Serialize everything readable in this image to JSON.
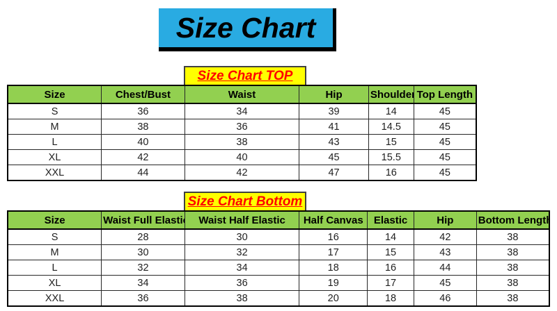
{
  "title": "Size Chart",
  "colors": {
    "title_bg": "#29ABE2",
    "title_text": "#000000",
    "label_bg": "#FFFF00",
    "label_text": "#FF0000",
    "header_bg": "#92D050",
    "border": "#000000"
  },
  "chart_data": [
    {
      "type": "table",
      "title": "Size Chart TOP",
      "columns": [
        "Size",
        "Chest/Bust",
        "Waist",
        "Hip",
        "Shoulder",
        "Top Length"
      ],
      "rows": [
        [
          "S",
          "36",
          "34",
          "39",
          "14",
          "45"
        ],
        [
          "M",
          "38",
          "36",
          "41",
          "14.5",
          "45"
        ],
        [
          "L",
          "40",
          "38",
          "43",
          "15",
          "45"
        ],
        [
          "XL",
          "42",
          "40",
          "45",
          "15.5",
          "45"
        ],
        [
          "XXL",
          "44",
          "42",
          "47",
          "16",
          "45"
        ]
      ]
    },
    {
      "type": "table",
      "title": "Size Chart Bottom",
      "columns": [
        "Size",
        "Waist Full Elastic",
        "Waist Half Elastic",
        "Half Canvas",
        "Elastic",
        "Hip",
        "Bottom Length"
      ],
      "rows": [
        [
          "S",
          "28",
          "30",
          "16",
          "14",
          "42",
          "38"
        ],
        [
          "M",
          "30",
          "32",
          "17",
          "15",
          "43",
          "38"
        ],
        [
          "L",
          "32",
          "34",
          "18",
          "16",
          "44",
          "38"
        ],
        [
          "XL",
          "34",
          "36",
          "19",
          "17",
          "45",
          "38"
        ],
        [
          "XXL",
          "36",
          "38",
          "20",
          "18",
          "46",
          "38"
        ]
      ]
    }
  ]
}
